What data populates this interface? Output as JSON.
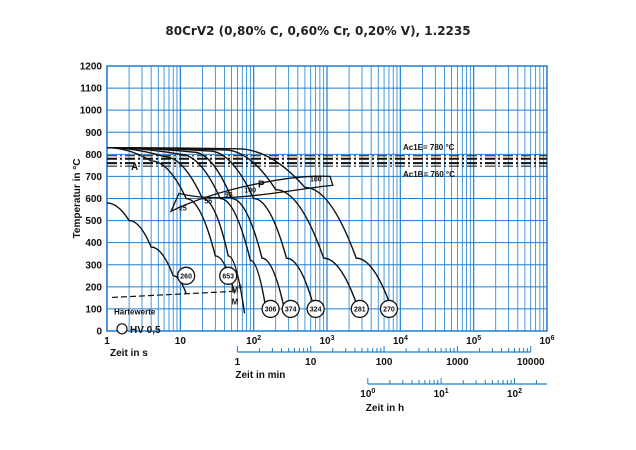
{
  "title": "80CrV2 (0,80% C, 0,60% Cr, 0,20% V), 1.2235",
  "chart_data": {
    "type": "line",
    "ylabel": "Temperatur in °C",
    "xlabel": "Zeit in s",
    "xscale": "log",
    "xlim": [
      1,
      1000000
    ],
    "ylim": [
      0,
      1200
    ],
    "y_ticks": [
      "0",
      "100",
      "200",
      "300",
      "400",
      "500",
      "600",
      "700",
      "800",
      "900",
      "1000",
      "1100",
      "1200"
    ],
    "x_ticks": [
      "1",
      "10",
      "10²",
      "10³",
      "10⁴",
      "10⁵",
      "10⁶"
    ],
    "x2_label": "Zeit in min",
    "x2_ticks": [
      {
        "label": "1",
        "min": 1
      },
      {
        "label": "10",
        "min": 10
      },
      {
        "label": "100",
        "min": 100
      },
      {
        "label": "1000",
        "min": 1000
      },
      {
        "label": "10000",
        "min": 10000
      }
    ],
    "x3_label": "Zeit in h",
    "x3_ticks": [
      {
        "label": "10⁰",
        "h": 1
      },
      {
        "label": "10¹",
        "h": 10
      },
      {
        "label": "10²",
        "h": 100
      }
    ],
    "ac_lines": [
      {
        "label": "Ac1E= 780 °C",
        "y": 780
      },
      {
        "label": "Ac1B= 760 °C",
        "y": 760
      }
    ],
    "ms_line": {
      "label": "Ms",
      "y": 170
    },
    "series": [
      {
        "t": [
          1,
          2,
          4,
          8,
          12
        ],
        "T": [
          580,
          500,
          380,
          250,
          170
        ]
      },
      {
        "t": [
          1,
          4,
          12,
          30,
          55
        ],
        "T": [
          830,
          770,
          600,
          340,
          170
        ]
      },
      {
        "t": [
          1,
          6,
          20,
          45,
          75
        ],
        "T": [
          830,
          790,
          600,
          340,
          80
        ]
      },
      {
        "t": [
          1,
          10,
          35,
          90,
          150
        ],
        "T": [
          830,
          800,
          600,
          320,
          80
        ]
      },
      {
        "t": [
          1,
          15,
          50,
          130,
          270
        ],
        "T": [
          830,
          810,
          600,
          330,
          80
        ]
      },
      {
        "t": [
          1,
          25,
          100,
          280,
          700
        ],
        "T": [
          830,
          815,
          600,
          330,
          80
        ]
      },
      {
        "t": [
          1,
          40,
          200,
          900,
          2800
        ],
        "T": [
          830,
          820,
          640,
          330,
          80
        ]
      },
      {
        "t": [
          1,
          60,
          500,
          2500,
          8000
        ],
        "T": [
          830,
          825,
          650,
          330,
          80
        ]
      }
    ],
    "transformation_region": {
      "start_label": "A",
      "perlite_label": "P",
      "points": [
        {
          "t": 9,
          "T": 560,
          "label": "25"
        },
        {
          "t": 20,
          "T": 590,
          "label": "55"
        },
        {
          "t": 38,
          "T": 620,
          "label": "95"
        },
        {
          "t": 70,
          "T": 640,
          "label": "100"
        },
        {
          "t": 550,
          "T": 690,
          "label": "100"
        }
      ]
    },
    "hardness_legend": {
      "title": "Härtewerte",
      "label": "HV 0,5"
    },
    "hardness_values": [
      {
        "t": 12,
        "T": 250,
        "value": "260"
      },
      {
        "t": 45,
        "T": 250,
        "value": "653"
      },
      {
        "t": 170,
        "T": 100,
        "value": "306"
      },
      {
        "t": 320,
        "T": 100,
        "value": "374"
      },
      {
        "t": 700,
        "T": 100,
        "value": "324"
      },
      {
        "t": 2800,
        "T": 100,
        "value": "281"
      },
      {
        "t": 7000,
        "T": 100,
        "value": "270"
      }
    ],
    "annotations": [
      "M",
      "Ms"
    ],
    "grid": true
  }
}
